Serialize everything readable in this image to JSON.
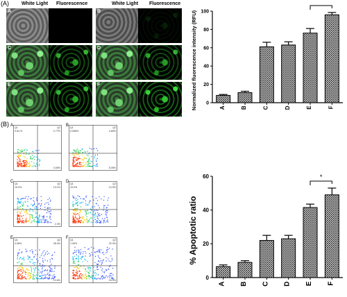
{
  "figure": {
    "panel_a_label": "(A)",
    "panel_b_label": "(B)"
  },
  "microscopy": {
    "header_white": "White Light",
    "header_fluor": "Fluorescence",
    "panels": [
      {
        "letter": "A",
        "fluor_level": 0.0
      },
      {
        "letter": "B",
        "fluor_level": 0.12
      },
      {
        "letter": "C",
        "fluor_level": 0.75
      },
      {
        "letter": "D",
        "fluor_level": 0.72
      },
      {
        "letter": "E",
        "fluor_level": 0.82
      },
      {
        "letter": "F",
        "fluor_level": 0.95
      }
    ]
  },
  "flow": {
    "panels": [
      {
        "letter": "A",
        "q1": "0.64 %",
        "q2": "2.77%",
        "q3": "",
        "q4": "3.05%",
        "density": 0.25
      },
      {
        "letter": "B",
        "q1": "0.058%",
        "q2": "4.65%",
        "q3": "",
        "q4": "5.05%",
        "density": 0.3
      },
      {
        "letter": "C",
        "q1": "15.0%",
        "q2": "13.1%",
        "q3": "",
        "q4": "2.3%",
        "density": 0.65
      },
      {
        "letter": "D",
        "q1": "19.0%",
        "q2": "13.9%",
        "q3": "",
        "q4": "",
        "density": 0.7
      },
      {
        "letter": "E",
        "q1": "4.08%",
        "q2": "28.4%",
        "q3": "",
        "q4": "13.6%",
        "density": 0.8
      },
      {
        "letter": "F",
        "q1": "1.05%",
        "q2": "32.3%",
        "q3": "",
        "q4": "16.0%",
        "density": 0.9
      }
    ]
  },
  "chart_data": [
    {
      "type": "bar",
      "categories": [
        "A",
        "B",
        "C",
        "D",
        "E",
        "F"
      ],
      "values": [
        8,
        11,
        61,
        63,
        76,
        96
      ],
      "errors": [
        1,
        1.5,
        5,
        3.5,
        5,
        2.5
      ],
      "title": "",
      "xlabel": "",
      "ylabel": "Normalized fluorescence intensity (RFU)",
      "ylim": [
        0,
        100
      ],
      "yticks": [
        0,
        20,
        40,
        60,
        80,
        100
      ],
      "significance": {
        "from": "E",
        "to": "F",
        "label": "*"
      },
      "grid": false
    },
    {
      "type": "bar",
      "categories": [
        "A",
        "B",
        "C",
        "D",
        "E",
        "F"
      ],
      "values": [
        6.5,
        9,
        22,
        23,
        41.5,
        49
      ],
      "errors": [
        1,
        1,
        3,
        2,
        2,
        4
      ],
      "title": "",
      "xlabel": "",
      "ylabel": "% Apoptotic ratio",
      "ylim": [
        0,
        60
      ],
      "yticks": [
        0,
        20,
        40,
        60
      ],
      "significance": {
        "from": "E",
        "to": "F",
        "label": "*"
      },
      "grid": false
    }
  ]
}
